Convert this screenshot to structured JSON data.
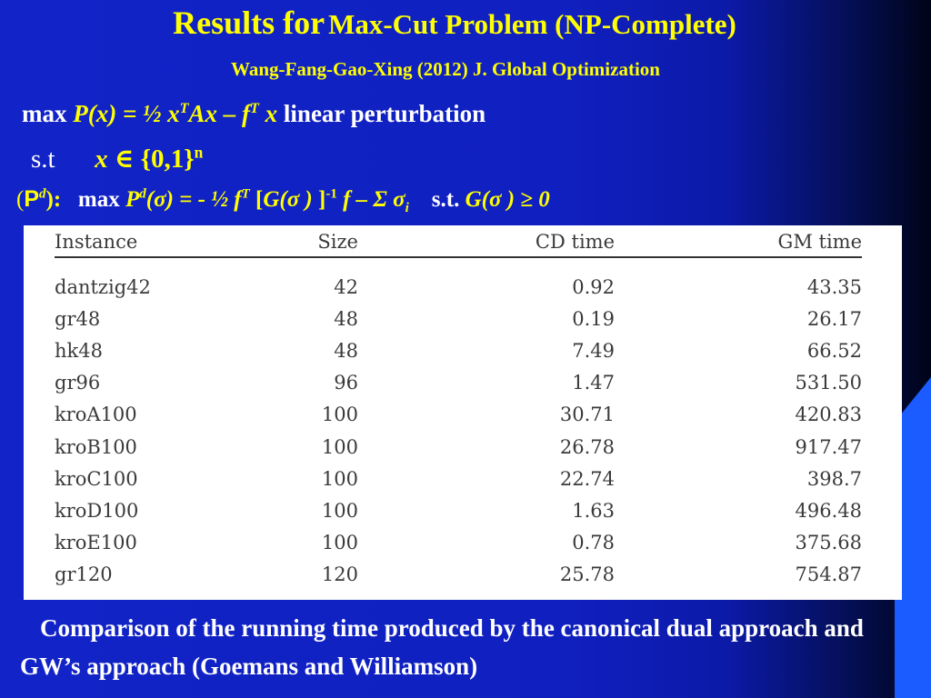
{
  "title": {
    "part1": "Results for",
    "part2": "Max-Cut Problem (NP-Complete)"
  },
  "subtitle": "Wang-Fang-Gao-Xing (2012) J. Global Optimization",
  "eq1": {
    "max": "max",
    "p": "P(x) = ½ x",
    "T": "T",
    "ax": "Ax",
    "minus": " – f",
    "fT": "T",
    "x": " x",
    "note": "linear perturbation"
  },
  "eq2": {
    "st": "s.t",
    "x": "x",
    "in": "∈",
    "set": "{0,1}",
    "n": "n"
  },
  "eq3": {
    "open": "(",
    "P": "P",
    "d": "d",
    "close": "):",
    "max": "max",
    "Pd": "P",
    "d2": "d",
    "arg": "(σ) = - ½ f",
    "T": "T",
    "bracket": "[",
    "G": "G(σ )",
    "bracket2": " ]",
    "inv": "-1",
    "f": " f –  Σ σ",
    "i": "i",
    "st": "s.t.",
    "constraint": "G(σ )  ≥ 0"
  },
  "table": {
    "headers": [
      "Instance",
      "Size",
      "CD time",
      "GM time"
    ],
    "rows": [
      [
        "dantzig42",
        "42",
        "0.92",
        "43.35"
      ],
      [
        "gr48",
        "48",
        "0.19",
        "26.17"
      ],
      [
        "hk48",
        "48",
        "7.49",
        "66.52"
      ],
      [
        "gr96",
        "96",
        "1.47",
        "531.50"
      ],
      [
        "kroA100",
        "100",
        "30.71",
        "420.83"
      ],
      [
        "kroB100",
        "100",
        "26.78",
        "917.47"
      ],
      [
        "kroC100",
        "100",
        "22.74",
        "398.7"
      ],
      [
        "kroD100",
        "100",
        "1.63",
        "496.48"
      ],
      [
        "kroE100",
        "100",
        "0.78",
        "375.68"
      ],
      [
        "gr120",
        "120",
        "25.78",
        "754.87"
      ]
    ]
  },
  "caption": "Comparison of  the running time produced by the canonical dual approach and GW’s approach (Goemans and Williamson)",
  "colors": {
    "background": "#1020c0",
    "title": "#ffff00",
    "text": "#ffffff",
    "accent_bar": "#1a5cff"
  }
}
